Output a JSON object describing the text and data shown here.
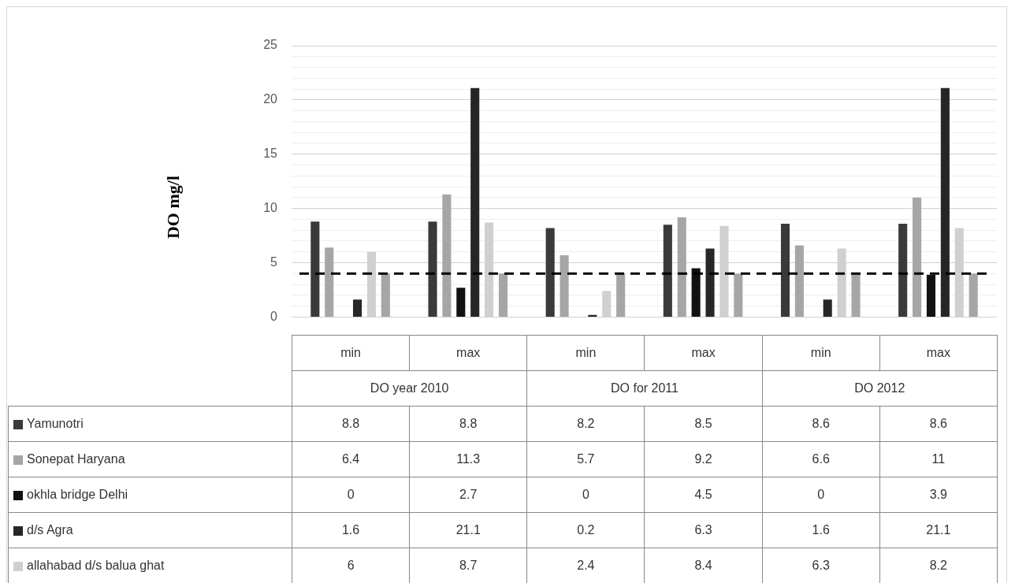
{
  "chart_data": {
    "type": "bar",
    "ylabel": "DO mg/l",
    "categories": [
      "min",
      "max",
      "min",
      "max",
      "min",
      "max"
    ],
    "annotations": [
      "DO year 2010",
      "DO for 2011",
      "DO 2012"
    ],
    "series": [
      {
        "name": "Yamunotri",
        "color": "#3a3a3a",
        "values": [
          8.8,
          8.8,
          8.2,
          8.5,
          8.6,
          8.6
        ],
        "value_labels": [
          "8.8",
          "8.8",
          "8.2",
          "8.5",
          "8.6",
          "8.6"
        ]
      },
      {
        "name": "Sonepat Haryana",
        "color": "#a6a6a6",
        "values": [
          6.4,
          11.3,
          5.7,
          9.2,
          6.6,
          11
        ],
        "value_labels": [
          "6.4",
          "11.3",
          "5.7",
          "9.2",
          "6.6",
          "11"
        ]
      },
      {
        "name": "okhla bridge Delhi",
        "color": "#111111",
        "values": [
          0,
          2.7,
          0,
          4.5,
          0,
          3.9
        ],
        "value_labels": [
          "0",
          "2.7",
          "0",
          "4.5",
          "0",
          "3.9"
        ]
      },
      {
        "name": "d/s Agra",
        "color": "#262626",
        "values": [
          1.6,
          21.1,
          0.2,
          6.3,
          1.6,
          21.1
        ],
        "value_labels": [
          "1.6",
          "21.1",
          "0.2",
          "6.3",
          "1.6",
          "21.1"
        ]
      },
      {
        "name": "allahabad d/s balua ghat",
        "color": "#d0d0d0",
        "values": [
          6,
          8.7,
          2.4,
          8.4,
          6.3,
          8.2
        ],
        "value_labels": [
          "6",
          "8.7",
          "2.4",
          "8.4",
          "6.3",
          "8.2"
        ]
      },
      {
        "color": "#a6a6a6",
        "values": [
          4,
          4,
          4,
          4,
          4,
          4
        ]
      }
    ],
    "ylim": [
      0,
      25
    ],
    "yticks": [
      0,
      {
        "value": 1,
        "label": null
      },
      {
        "value": 2,
        "label": null
      },
      {
        "value": 3,
        "label": null
      },
      {
        "value": 4,
        "label": null
      },
      5,
      {
        "value": 6,
        "label": null
      },
      {
        "value": 7,
        "label": null
      },
      {
        "value": 8,
        "label": null
      },
      {
        "value": 9,
        "label": null
      },
      10,
      {
        "value": 11,
        "label": null
      },
      {
        "value": 12,
        "label": null
      },
      {
        "value": 13,
        "label": null
      },
      {
        "value": 14,
        "label": null
      },
      15,
      {
        "value": 16,
        "label": null
      },
      {
        "value": 17,
        "label": null
      },
      {
        "value": 18,
        "label": null
      },
      {
        "value": 19,
        "label": null
      },
      20,
      {
        "value": 21,
        "label": null
      },
      {
        "value": 22,
        "label": null
      },
      {
        "value": 23,
        "label": null
      },
      {
        "value": 24,
        "label": null
      },
      25
    ],
    "grid": "y",
    "legend": "bottom",
    "ref_lines": [
      {
        "axis": "y",
        "value": 4,
        "color": "#000000",
        "line_style": "dashed"
      }
    ]
  }
}
